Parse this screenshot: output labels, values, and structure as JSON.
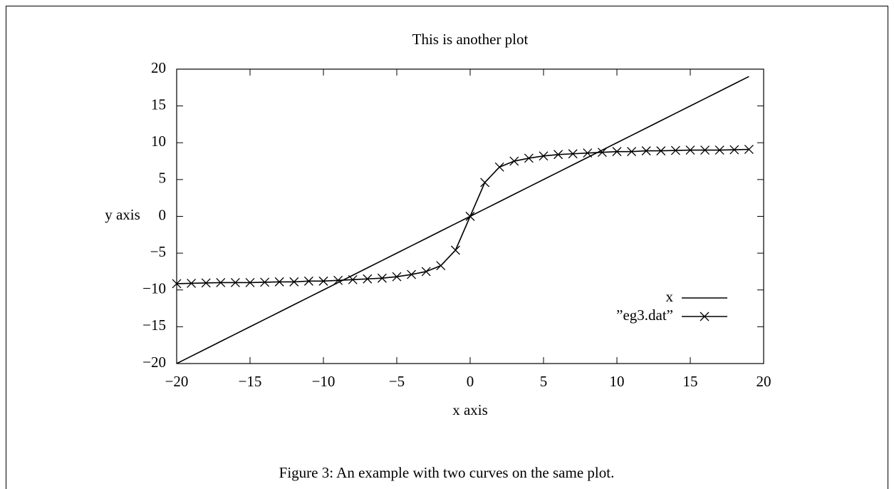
{
  "chart_data": {
    "type": "line",
    "title": "This is another plot",
    "x_label": "x axis",
    "y_label": "y axis",
    "x": [
      -20,
      -19,
      -18,
      -17,
      -16,
      -15,
      -14,
      -13,
      -12,
      -11,
      -10,
      -9,
      -8,
      -7,
      -6,
      -5,
      -4,
      -3,
      -2,
      -1,
      0,
      1,
      2,
      3,
      4,
      5,
      6,
      7,
      8,
      9,
      10,
      11,
      12,
      13,
      14,
      15,
      16,
      17,
      18,
      19
    ],
    "series": [
      {
        "name": "x",
        "color": "#000000",
        "marker": "none",
        "values": [
          -20,
          -19,
          -18,
          -17,
          -16,
          -15,
          -14,
          -13,
          -12,
          -11,
          -10,
          -9,
          -8,
          -7,
          -6,
          -5,
          -4,
          -3,
          -2,
          -1,
          0,
          1,
          2,
          3,
          4,
          5,
          6,
          7,
          8,
          9,
          10,
          11,
          12,
          13,
          14,
          15,
          16,
          17,
          18,
          19
        ]
      },
      {
        "name": "”eg3.dat”",
        "color": "#000000",
        "marker": "x",
        "values": [
          -9.15,
          -9.1,
          -9.05,
          -9.0,
          -9.0,
          -9.0,
          -8.95,
          -8.9,
          -8.9,
          -8.8,
          -8.8,
          -8.7,
          -8.6,
          -8.5,
          -8.4,
          -8.2,
          -7.9,
          -7.5,
          -6.7,
          -4.6,
          0,
          4.6,
          6.7,
          7.5,
          7.9,
          8.2,
          8.4,
          8.5,
          8.6,
          8.7,
          8.8,
          8.8,
          8.9,
          8.9,
          8.95,
          9.0,
          9.0,
          9.0,
          9.05,
          9.1
        ]
      }
    ],
    "xlim": [
      -20,
      20
    ],
    "ylim": [
      -20,
      20
    ],
    "xticks": [
      {
        "value": -20,
        "label": "−20"
      },
      {
        "value": -15,
        "label": "−15"
      },
      {
        "value": -10,
        "label": "−10"
      },
      {
        "value": -5,
        "label": "−5"
      },
      0,
      5,
      10,
      15,
      20
    ],
    "yticks": [
      {
        "value": -20,
        "label": "−20"
      },
      {
        "value": -15,
        "label": "−15"
      },
      {
        "value": -10,
        "label": "−10"
      },
      {
        "value": -5,
        "label": "−5"
      },
      0,
      5,
      10,
      15,
      20
    ],
    "grid": false,
    "legend": "lower right"
  },
  "caption": "Figure 3: An example with two curves on the same plot."
}
